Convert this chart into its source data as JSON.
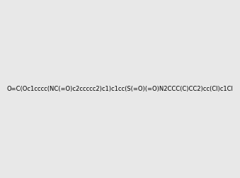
{
  "smiles": "O=C(Oc1cccc(NC(=O)c2ccccc2)c1)c1cc(S(=O)(=O)N2CCC(C)CC2)cc(Cl)c1Cl",
  "image_size": 300,
  "background_color": "#e8e8e8"
}
